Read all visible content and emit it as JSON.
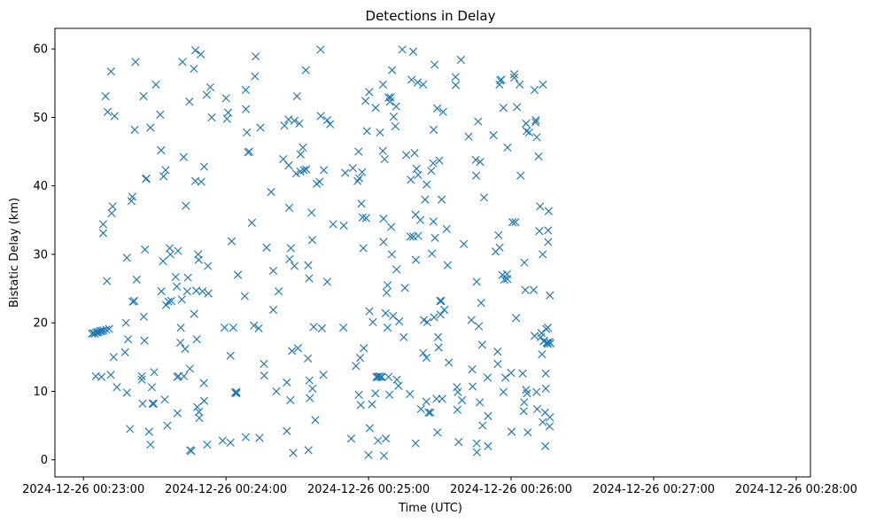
{
  "chart_data": {
    "type": "scatter",
    "title": "Detections in Delay",
    "xlabel": "Time (UTC)",
    "ylabel": "Bistatic Delay (km)",
    "marker": "x",
    "marker_color": "#1f77b4",
    "x_unit": "seconds since 2024-12-26 00:22:00 UTC",
    "xlim": [
      48,
      366
    ],
    "ylim": [
      -2.5,
      63
    ],
    "grid": false,
    "xticks": [
      {
        "value": 60,
        "label": "2024-12-26 00:23:00"
      },
      {
        "value": 120,
        "label": "2024-12-26 00:24:00"
      },
      {
        "value": 180,
        "label": "2024-12-26 00:25:00"
      },
      {
        "value": 240,
        "label": "2024-12-26 00:26:00"
      },
      {
        "value": 300,
        "label": "2024-12-26 00:27:00"
      },
      {
        "value": 360,
        "label": "2024-12-26 00:28:00"
      }
    ],
    "yticks": [
      {
        "value": 0,
        "label": "0"
      },
      {
        "value": 10,
        "label": "10"
      },
      {
        "value": 20,
        "label": "20"
      },
      {
        "value": 30,
        "label": "30"
      },
      {
        "value": 40,
        "label": "40"
      },
      {
        "value": 50,
        "label": "50"
      },
      {
        "value": 60,
        "label": "60"
      }
    ],
    "points": [
      [
        63.6,
        18.4
      ],
      [
        64.2,
        18.5
      ],
      [
        64.8,
        18.4
      ],
      [
        65.4,
        18.6
      ],
      [
        66.0,
        18.6
      ],
      [
        66.6,
        18.7
      ],
      [
        67.2,
        18.8
      ],
      [
        67.8,
        18.8
      ],
      [
        68.4,
        18.9
      ],
      [
        69.6,
        19.0
      ],
      [
        70.8,
        19.1
      ],
      [
        65.2,
        12.2
      ],
      [
        67.6,
        12.1
      ],
      [
        68.3,
        34.4
      ],
      [
        68.3,
        33.1
      ],
      [
        69.3,
        53.1
      ],
      [
        69.9,
        26.1
      ],
      [
        70.2,
        50.8
      ],
      [
        71.6,
        56.7
      ],
      [
        71.5,
        12.4
      ],
      [
        71.9,
        36.0
      ],
      [
        72.3,
        37.0
      ],
      [
        72.7,
        15.0
      ],
      [
        73.1,
        50.2
      ],
      [
        74.1,
        10.6
      ],
      [
        77.5,
        15.7
      ],
      [
        77.9,
        20.0
      ],
      [
        78.3,
        29.5
      ],
      [
        78.3,
        9.8
      ],
      [
        78.8,
        17.6
      ],
      [
        79.6,
        4.5
      ],
      [
        80.2,
        37.8
      ],
      [
        80.6,
        38.4
      ],
      [
        80.8,
        23.1
      ],
      [
        81.4,
        23.2
      ],
      [
        81.6,
        48.2
      ],
      [
        81.9,
        58.1
      ],
      [
        82.4,
        26.3
      ],
      [
        84.6,
        12.2
      ],
      [
        84.6,
        11.7
      ],
      [
        84.9,
        8.2
      ],
      [
        85.3,
        53.1
      ],
      [
        85.4,
        20.9
      ],
      [
        85.7,
        17.4
      ],
      [
        85.9,
        30.7
      ],
      [
        86.3,
        41.0
      ],
      [
        86.5,
        41.1
      ],
      [
        87.6,
        4.1
      ],
      [
        88.2,
        48.5
      ],
      [
        88.2,
        2.2
      ],
      [
        88.8,
        10.6
      ],
      [
        89.1,
        8.2
      ],
      [
        89.6,
        8.2
      ],
      [
        89.8,
        12.8
      ],
      [
        90.5,
        54.8
      ],
      [
        92.3,
        50.4
      ],
      [
        92.7,
        45.2
      ],
      [
        92.8,
        24.6
      ],
      [
        93.5,
        29.0
      ],
      [
        93.7,
        41.4
      ],
      [
        94.2,
        8.8
      ],
      [
        94.6,
        42.3
      ],
      [
        94.8,
        22.6
      ],
      [
        95.3,
        5.0
      ],
      [
        95.8,
        23.1
      ],
      [
        96.3,
        30.9
      ],
      [
        96.6,
        30.0
      ],
      [
        97.0,
        23.2
      ],
      [
        98.8,
        26.7
      ],
      [
        99.3,
        25.3
      ],
      [
        99.5,
        12.1
      ],
      [
        99.6,
        6.8
      ],
      [
        99.8,
        30.5
      ],
      [
        100.0,
        12.2
      ],
      [
        100.8,
        17.1
      ],
      [
        101.0,
        19.3
      ],
      [
        101.4,
        23.4
      ],
      [
        101.7,
        58.1
      ],
      [
        102.2,
        44.2
      ],
      [
        102.3,
        12.2
      ],
      [
        102.8,
        16.2
      ],
      [
        103.1,
        37.1
      ],
      [
        103.7,
        24.6
      ],
      [
        104.0,
        26.6
      ],
      [
        104.6,
        52.3
      ],
      [
        104.8,
        13.3
      ],
      [
        104.9,
        1.4
      ],
      [
        105.4,
        1.3
      ],
      [
        106.5,
        57.1
      ],
      [
        106.6,
        21.3
      ],
      [
        107.1,
        59.8
      ],
      [
        107.1,
        40.7
      ],
      [
        107.5,
        24.7
      ],
      [
        107.7,
        17.6
      ],
      [
        107.9,
        7.7
      ],
      [
        108.3,
        30.0
      ],
      [
        108.5,
        29.2
      ],
      [
        108.6,
        7.0
      ],
      [
        108.8,
        6.1
      ],
      [
        109.4,
        59.2
      ],
      [
        109.6,
        40.6
      ],
      [
        110.1,
        24.6
      ],
      [
        110.8,
        42.8
      ],
      [
        110.7,
        11.2
      ],
      [
        110.8,
        8.6
      ],
      [
        111.9,
        53.3
      ],
      [
        112.1,
        2.2
      ],
      [
        112.4,
        28.3
      ],
      [
        112.6,
        24.3
      ],
      [
        113.4,
        54.4
      ],
      [
        114.0,
        50.0
      ],
      [
        118.6,
        2.8
      ],
      [
        119.4,
        19.3
      ],
      [
        120.0,
        52.8
      ],
      [
        120.4,
        49.8
      ],
      [
        120.9,
        50.7
      ],
      [
        121.9,
        2.5
      ],
      [
        121.9,
        15.2
      ],
      [
        122.4,
        31.9
      ],
      [
        123.1,
        19.3
      ],
      [
        123.8,
        9.8
      ],
      [
        124.4,
        9.9
      ],
      [
        124.4,
        9.7
      ],
      [
        125.0,
        27.0
      ],
      [
        127.9,
        23.9
      ],
      [
        128.3,
        3.3
      ],
      [
        128.3,
        54.0
      ],
      [
        128.4,
        51.2
      ],
      [
        128.8,
        47.8
      ],
      [
        129.3,
        44.9
      ],
      [
        129.8,
        45.0
      ],
      [
        130.9,
        34.6
      ],
      [
        131.8,
        19.6
      ],
      [
        132.2,
        56.0
      ],
      [
        132.5,
        58.9
      ],
      [
        133.8,
        19.2
      ],
      [
        134.1,
        3.2
      ],
      [
        134.5,
        48.5
      ],
      [
        136.0,
        14.0
      ],
      [
        136.1,
        12.3
      ],
      [
        137.1,
        31.0
      ],
      [
        139.0,
        39.1
      ],
      [
        139.9,
        27.6
      ],
      [
        139.9,
        21.9
      ],
      [
        141.2,
        10.0
      ],
      [
        142.2,
        24.6
      ],
      [
        144.1,
        43.9
      ],
      [
        144.6,
        48.8
      ],
      [
        145.6,
        11.3
      ],
      [
        145.6,
        4.2
      ],
      [
        146.3,
        49.7
      ],
      [
        146.4,
        43.0
      ],
      [
        146.6,
        36.8
      ],
      [
        147.1,
        8.7
      ],
      [
        146.8,
        29.3
      ],
      [
        147.3,
        30.9
      ],
      [
        147.8,
        15.9
      ],
      [
        148.3,
        1.0
      ],
      [
        148.8,
        49.5
      ],
      [
        148.8,
        28.3
      ],
      [
        149.5,
        41.8
      ],
      [
        149.9,
        53.1
      ],
      [
        150.3,
        16.3
      ],
      [
        150.9,
        49.1
      ],
      [
        151.3,
        42.1
      ],
      [
        151.4,
        44.6
      ],
      [
        152.4,
        45.6
      ],
      [
        152.8,
        42.3
      ],
      [
        153.8,
        42.4
      ],
      [
        153.6,
        56.9
      ],
      [
        154.5,
        14.8
      ],
      [
        154.6,
        28.4
      ],
      [
        154.7,
        1.4
      ],
      [
        155.0,
        26.5
      ],
      [
        155.1,
        11.6
      ],
      [
        155.3,
        9.0
      ],
      [
        156.0,
        36.1
      ],
      [
        156.3,
        32.1
      ],
      [
        156.4,
        10.4
      ],
      [
        156.9,
        19.4
      ],
      [
        157.6,
        5.8
      ],
      [
        158.2,
        40.3
      ],
      [
        159.4,
        40.6
      ],
      [
        159.9,
        50.2
      ],
      [
        159.8,
        59.9
      ],
      [
        160.4,
        19.2
      ],
      [
        161.0,
        12.4
      ],
      [
        161.2,
        42.3
      ],
      [
        162.6,
        49.6
      ],
      [
        162.6,
        26.0
      ],
      [
        163.8,
        49.0
      ],
      [
        165.1,
        34.4
      ],
      [
        169.4,
        19.3
      ],
      [
        169.6,
        34.2
      ],
      [
        170.2,
        41.9
      ],
      [
        172.7,
        3.1
      ],
      [
        173.4,
        42.6
      ],
      [
        174.7,
        13.7
      ],
      [
        175.4,
        40.7
      ],
      [
        175.9,
        9.5
      ],
      [
        175.8,
        45.0
      ],
      [
        176.1,
        41.1
      ],
      [
        176.5,
        14.9
      ],
      [
        176.7,
        8.0
      ],
      [
        177.0,
        37.4
      ],
      [
        177.3,
        42.0
      ],
      [
        177.5,
        35.4
      ],
      [
        177.8,
        30.9
      ],
      [
        178.0,
        16.3
      ],
      [
        178.7,
        52.4
      ],
      [
        179.0,
        35.3
      ],
      [
        179.3,
        48.0
      ],
      [
        180.0,
        0.7
      ],
      [
        180.3,
        53.7
      ],
      [
        180.5,
        4.6
      ],
      [
        180.4,
        21.7
      ],
      [
        181.5,
        8.1
      ],
      [
        181.8,
        20.1
      ],
      [
        182.9,
        9.7
      ],
      [
        183.0,
        51.4
      ],
      [
        183.3,
        12.1
      ],
      [
        183.6,
        12.1
      ],
      [
        184.0,
        2.8
      ],
      [
        184.2,
        12.1
      ],
      [
        184.6,
        12.2
      ],
      [
        184.8,
        47.8
      ],
      [
        185.2,
        12.1
      ],
      [
        185.6,
        12.1
      ],
      [
        186.0,
        45.1
      ],
      [
        186.1,
        54.8
      ],
      [
        186.3,
        35.2
      ],
      [
        186.3,
        31.8
      ],
      [
        186.5,
        0.6
      ],
      [
        186.8,
        43.9
      ],
      [
        187.2,
        21.4
      ],
      [
        187.3,
        3.1
      ],
      [
        187.6,
        24.4
      ],
      [
        188.0,
        19.3
      ],
      [
        188.0,
        25.5
      ],
      [
        188.4,
        12.1
      ],
      [
        188.5,
        52.9
      ],
      [
        188.8,
        9.5
      ],
      [
        189.0,
        52.3
      ],
      [
        189.3,
        52.9
      ],
      [
        189.5,
        34.0
      ],
      [
        189.8,
        30.0
      ],
      [
        189.9,
        56.9
      ],
      [
        190.3,
        21.0
      ],
      [
        190.6,
        50.1
      ],
      [
        191.3,
        48.7
      ],
      [
        191.6,
        51.6
      ],
      [
        191.8,
        27.8
      ],
      [
        191.9,
        11.7
      ],
      [
        192.6,
        10.8
      ],
      [
        192.9,
        20.2
      ],
      [
        194.2,
        59.9
      ],
      [
        194.8,
        17.9
      ],
      [
        195.3,
        25.1
      ],
      [
        195.9,
        44.5
      ],
      [
        197.4,
        9.6
      ],
      [
        197.6,
        32.6
      ],
      [
        197.8,
        40.9
      ],
      [
        198.1,
        55.5
      ],
      [
        198.8,
        59.6
      ],
      [
        198.8,
        32.6
      ],
      [
        199.4,
        44.8
      ],
      [
        199.8,
        35.8
      ],
      [
        199.9,
        29.2
      ],
      [
        199.8,
        2.4
      ],
      [
        200.2,
        42.5
      ],
      [
        200.7,
        55.1
      ],
      [
        200.9,
        41.6
      ],
      [
        200.9,
        32.7
      ],
      [
        201.8,
        35.0
      ],
      [
        202.1,
        7.4
      ],
      [
        203.0,
        54.8
      ],
      [
        203.0,
        15.6
      ],
      [
        203.3,
        20.4
      ],
      [
        203.8,
        38.0
      ],
      [
        204.3,
        8.5
      ],
      [
        204.4,
        14.9
      ],
      [
        204.5,
        40.2
      ],
      [
        204.7,
        20.1
      ],
      [
        205.3,
        6.9
      ],
      [
        206.0,
        6.9
      ],
      [
        206.4,
        42.2
      ],
      [
        206.7,
        30.1
      ],
      [
        207.2,
        43.3
      ],
      [
        207.3,
        34.8
      ],
      [
        207.4,
        48.2
      ],
      [
        207.6,
        20.8
      ],
      [
        207.8,
        57.7
      ],
      [
        208.0,
        32.4
      ],
      [
        208.6,
        8.9
      ],
      [
        208.9,
        51.3
      ],
      [
        209.0,
        4.0
      ],
      [
        209.3,
        17.9
      ],
      [
        209.5,
        16.4
      ],
      [
        209.8,
        43.7
      ],
      [
        210.1,
        23.2
      ],
      [
        210.3,
        21.2
      ],
      [
        210.6,
        23.2
      ],
      [
        210.8,
        38.0
      ],
      [
        211.0,
        8.9
      ],
      [
        211.4,
        50.8
      ],
      [
        211.9,
        21.9
      ],
      [
        212.9,
        33.7
      ],
      [
        213.3,
        28.4
      ],
      [
        213.8,
        14.2
      ],
      [
        216.6,
        55.9
      ],
      [
        216.7,
        54.7
      ],
      [
        217.2,
        10.6
      ],
      [
        217.4,
        7.3
      ],
      [
        217.6,
        9.9
      ],
      [
        217.9,
        2.6
      ],
      [
        218.9,
        58.4
      ],
      [
        219.3,
        8.7
      ],
      [
        220.1,
        31.5
      ],
      [
        222.1,
        47.2
      ],
      [
        223.3,
        20.4
      ],
      [
        223.6,
        13.2
      ],
      [
        223.8,
        10.7
      ],
      [
        225.1,
        43.8
      ],
      [
        225.3,
        41.5
      ],
      [
        225.5,
        2.4
      ],
      [
        225.5,
        26.0
      ],
      [
        225.6,
        1.1
      ],
      [
        226.1,
        49.4
      ],
      [
        226.4,
        19.5
      ],
      [
        226.8,
        8.4
      ],
      [
        227.0,
        43.5
      ],
      [
        227.4,
        22.9
      ],
      [
        227.8,
        16.8
      ],
      [
        228.0,
        5.0
      ],
      [
        228.6,
        38.3
      ],
      [
        230.1,
        12.0
      ],
      [
        230.3,
        2.0
      ],
      [
        230.3,
        6.4
      ],
      [
        232.6,
        47.4
      ],
      [
        233.5,
        30.4
      ],
      [
        234.3,
        15.8
      ],
      [
        234.4,
        14.0
      ],
      [
        234.7,
        32.8
      ],
      [
        235.1,
        54.8
      ],
      [
        235.2,
        31.0
      ],
      [
        235.4,
        55.4
      ],
      [
        235.9,
        55.5
      ],
      [
        236.3,
        27.0
      ],
      [
        236.8,
        51.4
      ],
      [
        236.8,
        9.9
      ],
      [
        237.2,
        26.3
      ],
      [
        237.6,
        12.0
      ],
      [
        238.3,
        27.1
      ],
      [
        238.4,
        26.4
      ],
      [
        238.5,
        45.6
      ],
      [
        240.0,
        12.7
      ],
      [
        240.2,
        4.1
      ],
      [
        240.6,
        34.7
      ],
      [
        241.3,
        56.3
      ],
      [
        241.3,
        55.8
      ],
      [
        241.8,
        34.7
      ],
      [
        242.1,
        20.7
      ],
      [
        242.5,
        51.5
      ],
      [
        243.6,
        54.8
      ],
      [
        244.0,
        41.5
      ],
      [
        244.9,
        12.6
      ],
      [
        245.3,
        7.1
      ],
      [
        245.5,
        8.4
      ],
      [
        245.6,
        28.8
      ],
      [
        246.0,
        24.8
      ],
      [
        246.3,
        49.1
      ],
      [
        246.3,
        10.2
      ],
      [
        246.5,
        48.0
      ],
      [
        246.7,
        9.7
      ],
      [
        247.0,
        4.0
      ],
      [
        247.6,
        47.8
      ],
      [
        249.5,
        24.8
      ],
      [
        249.9,
        54.0
      ],
      [
        249.9,
        18.1
      ],
      [
        250.3,
        49.3
      ],
      [
        250.4,
        49.6
      ],
      [
        250.7,
        9.9
      ],
      [
        250.8,
        47.1
      ],
      [
        251.0,
        7.4
      ],
      [
        251.6,
        44.3
      ],
      [
        251.9,
        33.4
      ],
      [
        252.2,
        37.0
      ],
      [
        252.5,
        17.9
      ],
      [
        252.8,
        18.5
      ],
      [
        253.0,
        15.4
      ],
      [
        253.3,
        30.0
      ],
      [
        253.3,
        5.5
      ],
      [
        253.4,
        54.8
      ],
      [
        253.7,
        17.3
      ],
      [
        253.9,
        17.4
      ],
      [
        254.3,
        6.9
      ],
      [
        254.4,
        2.0
      ],
      [
        254.6,
        12.6
      ],
      [
        254.6,
        10.4
      ],
      [
        254.8,
        19.1
      ],
      [
        255.0,
        17.1
      ],
      [
        255.3,
        17.1
      ],
      [
        255.5,
        19.3
      ],
      [
        255.5,
        16.9
      ],
      [
        255.6,
        33.5
      ],
      [
        255.6,
        31.8
      ],
      [
        255.8,
        36.3
      ],
      [
        256.1,
        17.2
      ],
      [
        256.2,
        4.9
      ],
      [
        256.3,
        6.2
      ],
      [
        256.3,
        24.0
      ],
      [
        256.6,
        17.0
      ]
    ]
  }
}
